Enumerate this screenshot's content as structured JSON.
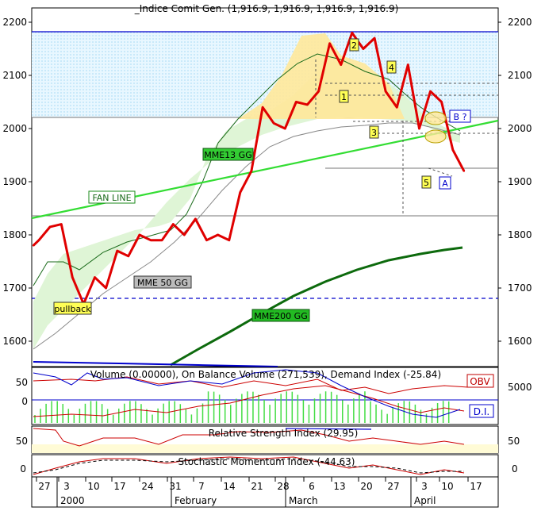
{
  "chart_data": [
    {
      "type": "line",
      "title": "_Indice Comit Gen. (1,916.9, 1,916.9, 1,916.9, 1,916.9)",
      "ylim": [
        1540,
        2240
      ],
      "yticks": [
        1600,
        1700,
        1800,
        1900,
        2000,
        2100,
        2200
      ],
      "series": [
        {
          "name": "",
          "role": "price",
          "color": "#e00000",
          "x": [
            0,
            1,
            3,
            5,
            7,
            9,
            11,
            13,
            15,
            17,
            19,
            21,
            23,
            25,
            27,
            29,
            31,
            33,
            35,
            37,
            39,
            41,
            43,
            45,
            47,
            49,
            51,
            53,
            55,
            57,
            59,
            61,
            63,
            65,
            67,
            69,
            71,
            73,
            75,
            77
          ],
          "values": [
            1780,
            1790,
            1815,
            1820,
            1720,
            1670,
            1720,
            1700,
            1770,
            1760,
            1800,
            1790,
            1790,
            1820,
            1800,
            1830,
            1790,
            1800,
            1790,
            1880,
            1920,
            2040,
            2010,
            2000,
            2050,
            2045,
            2070,
            2160,
            2120,
            2180,
            2150,
            2170,
            2070,
            2040,
            2120,
            2000,
            2070,
            2050,
            1960,
            1920
          ]
        }
      ],
      "annotations": [
        "FAN LINE",
        "MME13 GG",
        "MME  50 GG",
        "MME200 GG",
        "pullback",
        "1",
        "2",
        "3",
        "4",
        "5",
        "A",
        "B ?"
      ]
    },
    {
      "type": "line",
      "title": "Volume (0.00000), On Balance Volume (271,539), Demand Index (-25.84)",
      "yticks_left": [
        "50",
        "0"
      ],
      "yticks_right": [
        "5000"
      ],
      "legend": [
        "OBV",
        "D.I."
      ]
    },
    {
      "type": "line",
      "title": "Relative Strength Index (29.95)",
      "yticks": [
        "50"
      ]
    },
    {
      "type": "line",
      "title": "Stochastic Momentum Index (-44.63)",
      "yticks": [
        "0"
      ]
    }
  ],
  "xaxis": {
    "days": [
      "27",
      "3",
      "10",
      "17",
      "24",
      "31",
      "7",
      "14",
      "21",
      "28",
      "6",
      "13",
      "20",
      "27",
      "3",
      "10",
      "17"
    ],
    "months": [
      "2000",
      "February",
      "March",
      "April"
    ]
  }
}
